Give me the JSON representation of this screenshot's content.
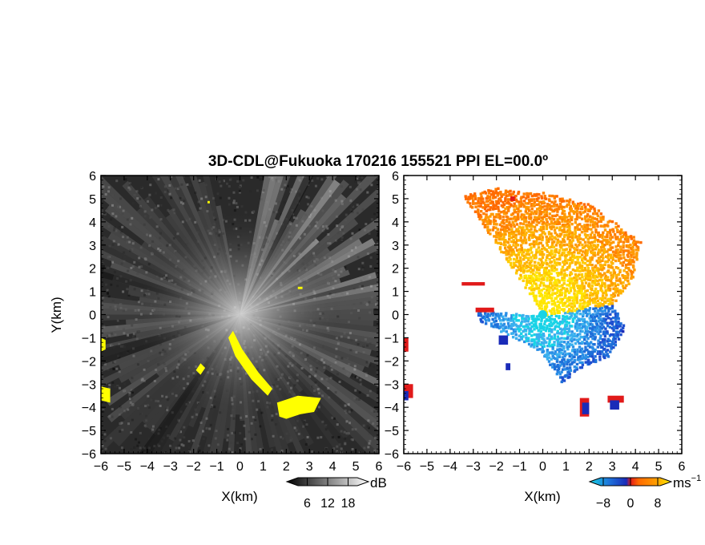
{
  "title": "3D-CDL@Fukuoka 170216 155521 PPI EL=00.0º",
  "panels": [
    {
      "xlabel": "X(km)",
      "ylabel": "Y(km)"
    },
    {
      "xlabel": "X(km)"
    }
  ],
  "colorbars": [
    {
      "unit": "dB",
      "tick_labels": [
        "6",
        "12",
        "18"
      ],
      "ticks": [
        6,
        12,
        18
      ],
      "range": [
        0,
        24
      ]
    },
    {
      "unit": "ms",
      "unit_exponent": "−1",
      "tick_labels": [
        "−8",
        "0",
        "8"
      ],
      "ticks": [
        -8,
        0,
        8
      ],
      "range": [
        -12,
        12
      ]
    }
  ],
  "colors": {
    "yellow_overlay": "#ffff00",
    "receding": "#ff8c00",
    "approaching": "#1e6fd9",
    "red_edge": "#e11a1a",
    "cyan": "#19d3e6"
  },
  "chart_data": [
    {
      "type": "heatmap",
      "name": "",
      "xlim": [
        -6,
        6
      ],
      "ylim": [
        -6,
        6
      ],
      "x_ticks": [
        -6,
        -5,
        -4,
        -3,
        -2,
        -1,
        0,
        1,
        2,
        3,
        4,
        5,
        6
      ],
      "y_ticks": [
        -6,
        -5,
        -4,
        -3,
        -2,
        -1,
        0,
        1,
        2,
        3,
        4,
        5,
        6
      ],
      "tick_labels_x": [
        "−6",
        "−5",
        "−4",
        "−3",
        "−2",
        "−1",
        "0",
        "1",
        "2",
        "3",
        "4",
        "5",
        "6"
      ],
      "tick_labels_y": [
        "−6",
        "−5",
        "−4",
        "−3",
        "−2",
        "−1",
        "0",
        "1",
        "2",
        "3",
        "4",
        "5",
        "6"
      ],
      "units": "dB",
      "yellow_regions": [
        [
          [
            -0.3,
            -0.7
          ],
          [
            0.1,
            -1.5
          ],
          [
            0.8,
            -2.5
          ],
          [
            1.4,
            -3.2
          ],
          [
            1.2,
            -3.5
          ],
          [
            0.5,
            -2.8
          ],
          [
            -0.2,
            -1.8
          ],
          [
            -0.5,
            -1.0
          ]
        ],
        [
          [
            1.6,
            -3.8
          ],
          [
            2.5,
            -3.5
          ],
          [
            3.5,
            -3.6
          ],
          [
            3.2,
            -4.2
          ],
          [
            2.6,
            -4.3
          ],
          [
            2.0,
            -4.5
          ],
          [
            1.7,
            -4.4
          ]
        ],
        [
          [
            -6,
            -1.0
          ],
          [
            -5.8,
            -1.1
          ],
          [
            -5.8,
            -1.5
          ],
          [
            -6,
            -1.6
          ]
        ],
        [
          [
            -6,
            -3.1
          ],
          [
            -5.6,
            -3.2
          ],
          [
            -5.6,
            -3.8
          ],
          [
            -6,
            -3.7
          ]
        ],
        [
          [
            -1.7,
            -2.1
          ],
          [
            -1.5,
            -2.3
          ],
          [
            -1.7,
            -2.6
          ],
          [
            -1.9,
            -2.4
          ]
        ],
        [
          [
            -1.4,
            4.9
          ],
          [
            -1.3,
            4.9
          ],
          [
            -1.3,
            4.8
          ],
          [
            -1.4,
            4.8
          ]
        ],
        [
          [
            2.5,
            1.2
          ],
          [
            2.7,
            1.2
          ],
          [
            2.7,
            1.1
          ],
          [
            2.5,
            1.1
          ]
        ]
      ]
    },
    {
      "type": "heatmap",
      "name": "",
      "xlim": [
        -6,
        6
      ],
      "ylim": [
        -6,
        6
      ],
      "x_ticks": [
        -6,
        -5,
        -4,
        -3,
        -2,
        -1,
        0,
        1,
        2,
        3,
        4,
        5,
        6
      ],
      "y_ticks": [
        -6,
        -5,
        -4,
        -3,
        -2,
        -1,
        0,
        1,
        2,
        3,
        4,
        5,
        6
      ],
      "tick_labels_x": [
        "−6",
        "−5",
        "−4",
        "−3",
        "−2",
        "−1",
        "0",
        "1",
        "2",
        "3",
        "4",
        "5",
        "6"
      ],
      "tick_labels_y": [
        "−6",
        "−5",
        "−4",
        "−3",
        "−2",
        "−1",
        "0",
        "1",
        "2",
        "3",
        "4",
        "5",
        "6"
      ],
      "units": "m s-1",
      "receding_region": [
        [
          0,
          0
        ],
        [
          -3.5,
          5.2
        ],
        [
          -2.0,
          5.5
        ],
        [
          0,
          5.3
        ],
        [
          2.0,
          4.8
        ],
        [
          4.2,
          3.2
        ],
        [
          3.8,
          1.5
        ],
        [
          3.0,
          0.5
        ]
      ],
      "approaching_region": [
        [
          0,
          0
        ],
        [
          3.0,
          0.5
        ],
        [
          3.5,
          -0.5
        ],
        [
          2.8,
          -1.8
        ],
        [
          1.5,
          -2.3
        ],
        [
          0.8,
          -2.9
        ],
        [
          -0.2,
          -1.5
        ],
        [
          -1.6,
          -0.8
        ],
        [
          -2.7,
          -0.3
        ],
        [
          -2.9,
          0.2
        ]
      ]
    }
  ]
}
